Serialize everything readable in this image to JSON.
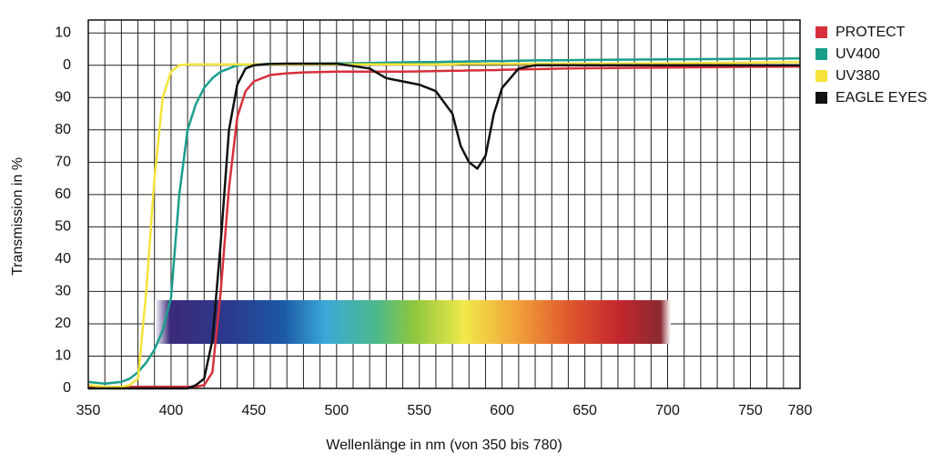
{
  "chart_data": {
    "type": "line",
    "xlabel": "Wellenlänge in nm (von 350 bis 780)",
    "ylabel": "Transmission in %",
    "x": [
      350,
      360,
      370,
      375,
      380,
      385,
      390,
      395,
      400,
      405,
      410,
      415,
      420,
      425,
      430,
      435,
      440,
      445,
      450,
      460,
      470,
      480,
      500,
      520,
      530,
      540,
      550,
      560,
      570,
      575,
      580,
      585,
      590,
      595,
      600,
      610,
      620,
      640,
      660,
      700,
      750,
      780
    ],
    "series": [
      {
        "name": "PROTECT",
        "color": "#d7303c",
        "values": [
          0.5,
          0.5,
          0.5,
          0.5,
          0.5,
          0.5,
          0.5,
          0.5,
          0.5,
          0.5,
          0.5,
          0.5,
          1,
          5,
          30,
          62,
          84,
          92,
          95,
          97,
          97.5,
          97.8,
          98,
          98,
          98,
          98,
          98.1,
          98.2,
          98.3,
          98.3,
          98.4,
          98.4,
          98.5,
          98.5,
          98.6,
          98.7,
          98.8,
          99,
          99.1,
          99.3,
          99.5,
          99.6
        ]
      },
      {
        "name": "UV400",
        "color": "#1a9e8c",
        "values": [
          2,
          1.5,
          2,
          3,
          5,
          8,
          12,
          18,
          28,
          60,
          80,
          88,
          93,
          96,
          98,
          99,
          100,
          100.2,
          100.3,
          100.4,
          100.5,
          100.5,
          100.6,
          100.7,
          100.8,
          100.9,
          101,
          101,
          101.1,
          101.1,
          101.2,
          101.2,
          101.3,
          101.3,
          101.3,
          101.4,
          101.5,
          101.6,
          101.7,
          101.8,
          102,
          102.1
        ]
      },
      {
        "name": "UV380",
        "color": "#f5e33a",
        "values": [
          1,
          0.5,
          0.5,
          1,
          3,
          30,
          65,
          90,
          98,
          100,
          100.3,
          100.3,
          100.3,
          100.3,
          100.3,
          100.3,
          100.3,
          100.3,
          100.3,
          100.3,
          100.3,
          100.3,
          100.3,
          100.3,
          100.3,
          100.3,
          100.3,
          100.3,
          100.3,
          100.4,
          100.4,
          100.4,
          100.4,
          100.4,
          100.4,
          100.4,
          100.4,
          100.5,
          100.5,
          100.6,
          100.8,
          101
        ]
      },
      {
        "name": "EAGLE EYES",
        "color": "#111111",
        "values": [
          0,
          0,
          0,
          0,
          0,
          0,
          0,
          0,
          0,
          0,
          0,
          1,
          3,
          15,
          45,
          80,
          94,
          99,
          100,
          100.4,
          100.5,
          100.5,
          100.5,
          99,
          96,
          95,
          94,
          92,
          85,
          75,
          70,
          68,
          72,
          85,
          93,
          99,
          100,
          100,
          100,
          100,
          100,
          100
        ]
      }
    ],
    "xlim": [
      350,
      780
    ],
    "xticks": [
      350,
      400,
      450,
      500,
      550,
      600,
      650,
      700,
      750,
      780
    ],
    "xgrid": [
      350,
      360,
      370,
      380,
      390,
      400,
      410,
      420,
      430,
      440,
      450,
      460,
      470,
      480,
      490,
      500,
      510,
      520,
      530,
      540,
      550,
      560,
      570,
      580,
      590,
      600,
      610,
      620,
      630,
      640,
      650,
      660,
      670,
      680,
      690,
      700,
      710,
      720,
      730,
      740,
      750,
      760,
      770,
      780
    ],
    "ylim": [
      0,
      114
    ],
    "yticks": [
      0,
      10,
      20,
      30,
      40,
      50,
      60,
      70,
      80,
      90,
      {
        "value": 100,
        "label": "0"
      },
      {
        "value": 110,
        "label": "10"
      }
    ],
    "grid": true,
    "legend": "right"
  }
}
